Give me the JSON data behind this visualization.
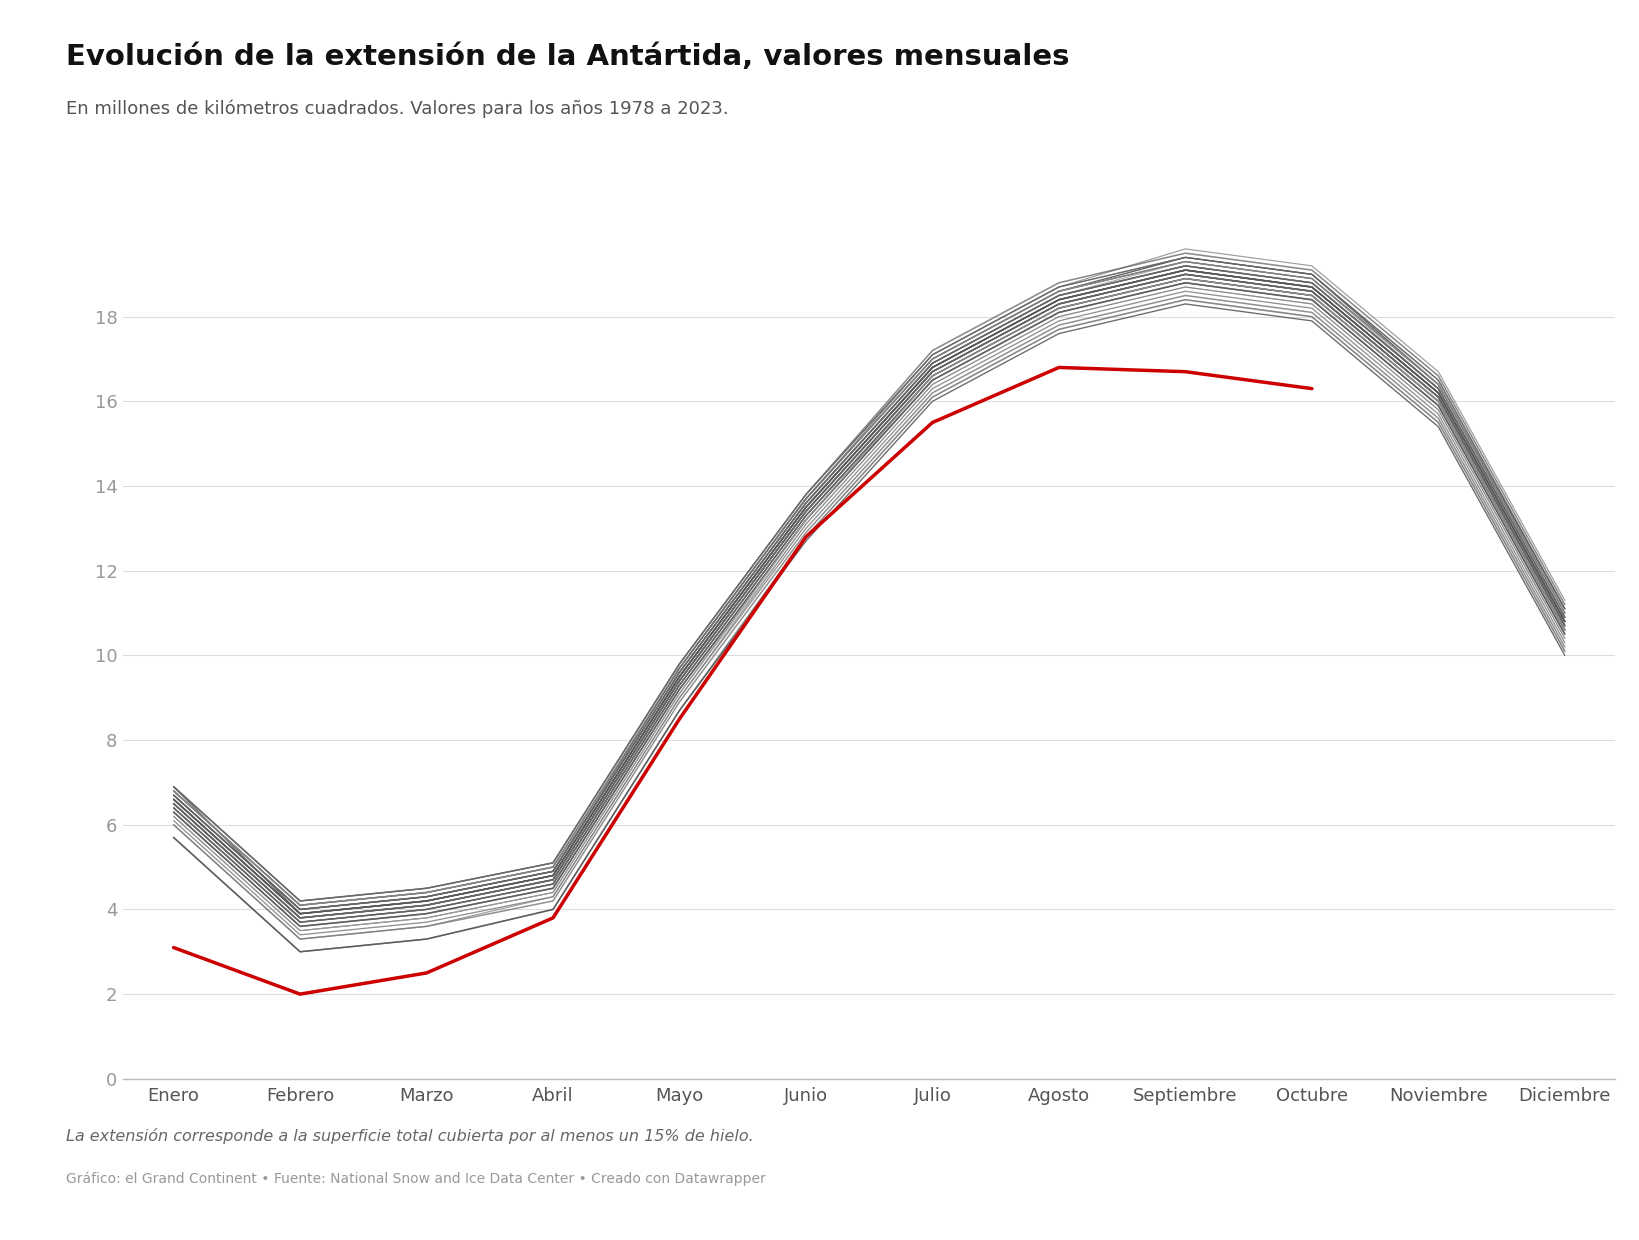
{
  "title": "Evolución de la extensión de la Antártida, valores mensuales",
  "subtitle": "En millones de kilómetros cuadrados. Valores para los años 1978 a 2023.",
  "footnote": "La extensión corresponde a la superficie total cubierta por al menos un 15% de hielo.",
  "source": "Gráfico: el Grand Continent • Fuente: National Snow and Ice Data Center • Creado con Datawrapper",
  "months": [
    "Enero",
    "Febrero",
    "Marzo",
    "Abril",
    "Mayo",
    "Junio",
    "Julio",
    "Agosto",
    "Septiembre",
    "Octubre",
    "Noviembre",
    "Diciembre"
  ],
  "ylim": [
    0,
    20.5
  ],
  "yticks": [
    0,
    2,
    4,
    6,
    8,
    10,
    12,
    14,
    16,
    18
  ],
  "highlight_color": "#cc0000",
  "background_color": "#ffffff",
  "grid_color": "#dddddd",
  "years_data": [
    [
      6.9,
      3.9,
      4.2,
      4.8,
      9.5,
      13.5,
      16.8,
      18.4,
      19.1,
      18.7,
      16.2,
      10.8
    ],
    [
      6.7,
      4.0,
      4.3,
      4.9,
      9.6,
      13.6,
      16.9,
      18.5,
      19.3,
      18.9,
      16.3,
      11.0
    ],
    [
      6.8,
      4.1,
      4.4,
      5.0,
      9.7,
      13.7,
      17.0,
      18.6,
      19.4,
      19.0,
      16.4,
      11.1
    ],
    [
      6.5,
      3.8,
      4.1,
      4.7,
      9.4,
      13.4,
      16.7,
      18.3,
      19.0,
      18.6,
      16.1,
      10.7
    ],
    [
      6.6,
      3.9,
      4.2,
      4.8,
      9.5,
      13.5,
      16.8,
      18.4,
      19.1,
      18.7,
      16.2,
      10.8
    ],
    [
      6.7,
      4.0,
      4.3,
      4.9,
      9.6,
      13.6,
      16.9,
      18.5,
      19.2,
      18.8,
      16.3,
      10.9
    ],
    [
      6.4,
      3.7,
      4.0,
      4.6,
      9.3,
      13.3,
      16.6,
      18.2,
      18.9,
      18.5,
      16.0,
      10.6
    ],
    [
      6.5,
      3.8,
      4.1,
      4.7,
      9.4,
      13.4,
      16.7,
      18.3,
      19.0,
      18.6,
      16.1,
      10.7
    ],
    [
      6.6,
      3.9,
      4.2,
      4.8,
      9.5,
      13.5,
      16.8,
      18.4,
      19.1,
      18.7,
      16.2,
      10.8
    ],
    [
      6.3,
      3.6,
      3.9,
      4.5,
      9.2,
      13.2,
      16.5,
      18.1,
      18.8,
      18.4,
      15.9,
      10.5
    ],
    [
      6.6,
      3.9,
      4.2,
      4.8,
      9.5,
      13.5,
      16.8,
      18.4,
      19.1,
      18.7,
      16.2,
      10.8
    ],
    [
      6.8,
      4.1,
      4.4,
      5.0,
      9.7,
      13.7,
      17.0,
      18.6,
      19.3,
      18.9,
      16.4,
      11.0
    ],
    [
      6.5,
      3.8,
      4.1,
      4.7,
      9.4,
      13.4,
      16.7,
      18.3,
      19.0,
      18.6,
      16.1,
      10.7
    ],
    [
      6.7,
      4.0,
      4.3,
      4.9,
      9.6,
      13.6,
      16.9,
      18.5,
      19.2,
      18.8,
      16.3,
      10.9
    ],
    [
      6.9,
      4.2,
      4.5,
      5.1,
      9.8,
      13.8,
      17.1,
      18.7,
      19.4,
      19.0,
      16.5,
      11.1
    ],
    [
      6.5,
      3.8,
      4.1,
      4.7,
      9.4,
      13.4,
      16.7,
      18.3,
      19.0,
      18.6,
      16.1,
      10.7
    ],
    [
      6.3,
      3.6,
      3.9,
      4.5,
      9.2,
      13.2,
      16.5,
      18.1,
      18.8,
      18.4,
      15.9,
      10.5
    ],
    [
      6.6,
      3.9,
      4.2,
      4.8,
      9.5,
      13.5,
      16.8,
      18.4,
      19.1,
      18.7,
      16.2,
      10.8
    ],
    [
      6.8,
      4.1,
      4.4,
      5.0,
      9.7,
      13.7,
      17.0,
      18.6,
      19.3,
      18.9,
      16.4,
      11.0
    ],
    [
      6.4,
      3.7,
      4.0,
      4.6,
      9.3,
      13.3,
      16.6,
      18.2,
      18.9,
      18.5,
      16.0,
      10.6
    ],
    [
      6.7,
      4.0,
      4.3,
      4.9,
      9.6,
      13.6,
      16.9,
      18.5,
      19.2,
      18.8,
      16.3,
      10.9
    ],
    [
      6.9,
      4.2,
      4.5,
      5.1,
      9.8,
      13.8,
      17.1,
      18.7,
      19.4,
      19.0,
      16.5,
      11.1
    ],
    [
      6.5,
      3.8,
      4.1,
      4.7,
      9.4,
      13.4,
      16.7,
      18.3,
      19.0,
      18.6,
      16.1,
      10.7
    ],
    [
      6.2,
      3.5,
      3.8,
      4.4,
      9.1,
      13.1,
      16.4,
      18.0,
      18.7,
      18.3,
      15.8,
      10.4
    ],
    [
      6.6,
      3.9,
      4.2,
      4.8,
      9.5,
      13.5,
      16.8,
      18.4,
      19.1,
      18.7,
      16.2,
      10.8
    ],
    [
      6.8,
      4.1,
      4.4,
      5.0,
      9.7,
      13.7,
      17.0,
      18.6,
      19.3,
      18.9,
      16.4,
      11.0
    ],
    [
      6.4,
      3.7,
      4.0,
      4.6,
      9.3,
      13.3,
      16.6,
      18.2,
      18.9,
      18.5,
      16.0,
      10.6
    ],
    [
      6.7,
      4.0,
      4.3,
      4.9,
      9.6,
      13.6,
      16.9,
      18.5,
      19.2,
      18.8,
      16.3,
      10.9
    ],
    [
      6.5,
      3.8,
      4.1,
      4.7,
      9.4,
      13.4,
      16.7,
      18.3,
      19.0,
      18.6,
      16.1,
      10.7
    ],
    [
      6.1,
      3.4,
      3.7,
      4.3,
      9.0,
      13.0,
      16.3,
      17.9,
      18.6,
      18.2,
      15.7,
      10.3
    ],
    [
      6.6,
      3.9,
      4.2,
      4.8,
      9.5,
      13.5,
      16.8,
      18.4,
      19.1,
      18.7,
      16.2,
      10.8
    ],
    [
      6.8,
      4.1,
      4.4,
      5.0,
      9.7,
      13.7,
      17.0,
      18.6,
      19.3,
      18.9,
      16.4,
      11.0
    ],
    [
      6.4,
      3.7,
      4.0,
      4.6,
      9.3,
      13.3,
      16.6,
      18.2,
      18.9,
      18.5,
      16.0,
      10.6
    ],
    [
      6.7,
      4.0,
      4.3,
      4.9,
      9.6,
      13.6,
      16.9,
      18.5,
      19.2,
      18.8,
      16.3,
      10.9
    ],
    [
      6.9,
      4.2,
      4.5,
      5.1,
      9.8,
      13.8,
      17.2,
      18.8,
      19.5,
      19.1,
      16.6,
      11.2
    ],
    [
      6.5,
      3.8,
      4.1,
      4.7,
      9.4,
      13.4,
      16.7,
      18.3,
      19.0,
      18.6,
      16.1,
      10.7
    ],
    [
      6.7,
      4.0,
      4.3,
      4.9,
      9.7,
      13.7,
      17.1,
      18.7,
      19.6,
      19.2,
      16.7,
      11.3
    ],
    [
      6.3,
      3.6,
      3.9,
      4.5,
      9.2,
      13.2,
      16.5,
      18.1,
      18.8,
      18.4,
      15.9,
      10.5
    ],
    [
      6.0,
      3.3,
      3.6,
      4.2,
      8.9,
      12.9,
      16.2,
      17.8,
      18.5,
      18.1,
      15.6,
      10.2
    ],
    [
      5.7,
      3.0,
      3.3,
      4.0,
      8.7,
      12.7,
      16.0,
      17.6,
      18.3,
      17.9,
      15.4,
      10.0
    ],
    [
      6.2,
      3.5,
      3.8,
      4.4,
      9.1,
      13.2,
      16.6,
      18.2,
      18.9,
      18.5,
      16.0,
      10.6
    ],
    [
      6.4,
      3.7,
      4.0,
      4.6,
      9.3,
      13.3,
      16.6,
      18.2,
      18.9,
      18.5,
      16.0,
      10.6
    ],
    [
      6.2,
      3.5,
      3.8,
      4.4,
      9.1,
      13.2,
      16.6,
      18.2,
      18.9,
      18.5,
      16.0,
      10.6
    ],
    [
      6.0,
      3.3,
      3.6,
      4.3,
      9.0,
      13.1,
      16.4,
      18.0,
      18.7,
      18.3,
      15.8,
      10.4
    ],
    [
      5.7,
      3.0,
      3.3,
      4.0,
      8.7,
      12.8,
      16.1,
      17.7,
      18.4,
      18.0,
      15.5,
      10.1
    ]
  ],
  "highlight_data": [
    3.1,
    2.0,
    2.5,
    3.8,
    8.5,
    12.8,
    15.5,
    16.8,
    16.7,
    16.3,
    null,
    null
  ]
}
